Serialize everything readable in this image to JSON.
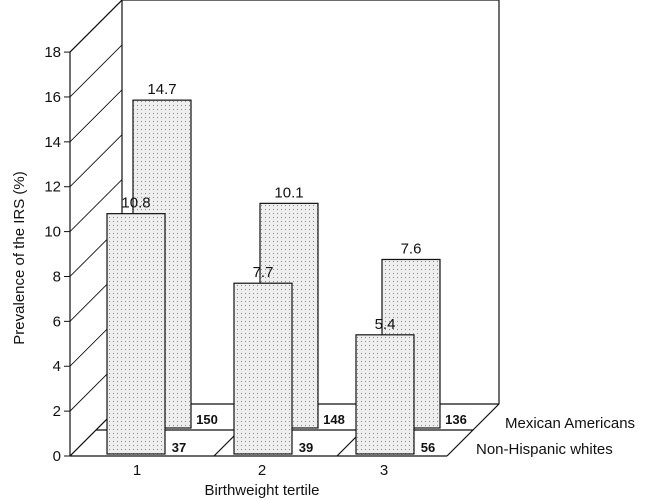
{
  "chart_data": {
    "type": "bar",
    "view": "3d-depth",
    "categories": [
      "1",
      "2",
      "3"
    ],
    "series": [
      {
        "name": "Non-Hispanic whites",
        "values": [
          10.8,
          7.7,
          5.4
        ],
        "n": [
          "37",
          "39",
          "56"
        ]
      },
      {
        "name": "Mexican Americans",
        "values": [
          14.7,
          10.1,
          7.6
        ],
        "n": [
          "150",
          "148",
          "136"
        ]
      }
    ],
    "value_labels": [
      [
        "10.8",
        "7.7",
        "5.4"
      ],
      [
        "14.7",
        "10.1",
        "7.6"
      ]
    ],
    "xlabel": "Birthweight tertile",
    "ylabel": "Prevalence of the IRS (%)",
    "ylim": [
      0,
      18
    ],
    "yticks": [
      "0",
      "2",
      "4",
      "6",
      "8",
      "10",
      "12",
      "14",
      "16",
      "18"
    ],
    "bar_fill": "dotted light gray",
    "colors": {
      "bar": "#eeeeee",
      "dots": "#8a8a8a",
      "line": "#111111"
    }
  }
}
